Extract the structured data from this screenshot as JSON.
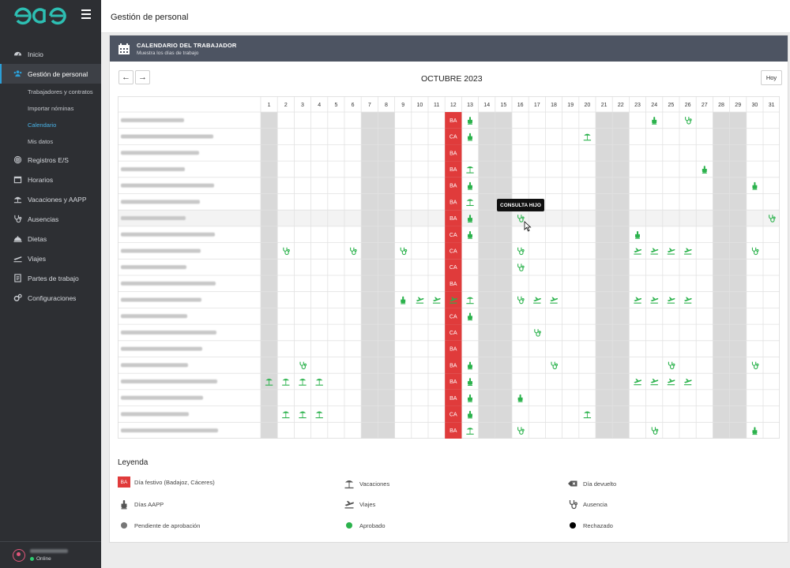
{
  "app": {
    "logo_text": "eae",
    "page_title": "Gestión de personal"
  },
  "sidebar": {
    "items": [
      {
        "label": "Inicio",
        "icon": "dashboard-icon"
      },
      {
        "label": "Gestión de personal",
        "icon": "users-icon",
        "active": true
      },
      {
        "label": "Trabajadores y contratos",
        "sub": true
      },
      {
        "label": "Importar nóminas",
        "sub": true
      },
      {
        "label": "Calendario",
        "sub": true,
        "current": true
      },
      {
        "label": "Mis datos",
        "sub": true
      },
      {
        "label": "Registros E/S",
        "icon": "fingerprint-icon"
      },
      {
        "label": "Horarios",
        "icon": "calendar-icon"
      },
      {
        "label": "Vacaciones y AAPP",
        "icon": "umbrella-icon"
      },
      {
        "label": "Ausencias",
        "icon": "stethoscope-icon"
      },
      {
        "label": "Dietas",
        "icon": "dish-icon"
      },
      {
        "label": "Viajes",
        "icon": "plane-icon"
      },
      {
        "label": "Partes de trabajo",
        "icon": "report-icon"
      },
      {
        "label": "Configuraciones",
        "icon": "gears-icon"
      }
    ],
    "user_status": "Online"
  },
  "card": {
    "title": "CALENDARIO DEL TRABAJADOR",
    "subtitle": "Muestra los días de trabajo"
  },
  "toolbar": {
    "prev": "←",
    "next": "→",
    "month": "OCTUBRE 2023",
    "today": "Hoy"
  },
  "calendar": {
    "days": [
      "1",
      "2",
      "3",
      "4",
      "5",
      "6",
      "7",
      "8",
      "9",
      "10",
      "11",
      "12",
      "13",
      "14",
      "15",
      "16",
      "17",
      "18",
      "19",
      "20",
      "21",
      "22",
      "23",
      "24",
      "25",
      "26",
      "27",
      "28",
      "29",
      "30",
      "31"
    ],
    "weekend_days": [
      1,
      7,
      8,
      14,
      15,
      21,
      22,
      28,
      29
    ],
    "holiday_day": 12,
    "rows": [
      {
        "h": "BA",
        "e": {
          "13": "A",
          "24": "A",
          "26": "U"
        }
      },
      {
        "h": "CA",
        "e": {
          "13": "A",
          "20": "V"
        }
      },
      {
        "h": "BA",
        "e": {}
      },
      {
        "h": "BA",
        "e": {
          "13": "V",
          "27": "A"
        }
      },
      {
        "h": "BA",
        "e": {
          "13": "A",
          "30": "A"
        }
      },
      {
        "h": "BA",
        "e": {
          "13": "V"
        }
      },
      {
        "h": "BA",
        "e": {
          "13": "A",
          "16": "U",
          "31": "U"
        }
      },
      {
        "h": "CA",
        "e": {
          "13": "A",
          "23": "A"
        }
      },
      {
        "h": "CA",
        "e": {
          "2": "U",
          "6": "U",
          "9": "U",
          "16": "U",
          "23": "T",
          "24": "T",
          "25": "T",
          "26": "T",
          "30": "U"
        }
      },
      {
        "h": "CA",
        "e": {
          "16": "U"
        }
      },
      {
        "h": "BA",
        "e": {}
      },
      {
        "h": "BA",
        "e": {
          "9": "A",
          "10": "T",
          "11": "T",
          "12": "T",
          "13": "V",
          "16": "U",
          "17": "T",
          "18": "T",
          "23": "T",
          "24": "T",
          "25": "T",
          "26": "T"
        }
      },
      {
        "h": "CA",
        "e": {
          "13": "A"
        }
      },
      {
        "h": "CA",
        "e": {
          "17": "U"
        }
      },
      {
        "h": "BA",
        "e": {}
      },
      {
        "h": "BA",
        "e": {
          "3": "U",
          "13": "A",
          "18": "U",
          "25": "U",
          "30": "U"
        }
      },
      {
        "h": "BA",
        "e": {
          "1": "V",
          "2": "V",
          "3": "V",
          "4": "V",
          "13": "A",
          "23": "T",
          "24": "T",
          "25": "T",
          "26": "T"
        }
      },
      {
        "h": "BA",
        "e": {
          "13": "A",
          "16": "A"
        }
      },
      {
        "h": "CA",
        "e": {
          "2": "V",
          "3": "V",
          "4": "V",
          "13": "A",
          "20": "V"
        }
      },
      {
        "h": "BA",
        "e": {
          "13": "V",
          "16": "U",
          "24": "U",
          "30": "A"
        }
      }
    ]
  },
  "tooltip": {
    "text": "CONSULTA HIJO"
  },
  "legend": {
    "title": "Leyenda",
    "holiday_box": "BA",
    "holiday": "Día festivo (Badajoz, Cáceres)",
    "vacations": "Vacaciones",
    "day_returned": "Día devuelto",
    "aapp": "Días AAPP",
    "trips": "Viajes",
    "absence": "Ausencia",
    "pending": "Pendiente de aprobación",
    "approved": "Aprobado",
    "rejected": "Rechazado"
  },
  "colors": {
    "accent": "#2b9fd8",
    "holiday": "#e03b3b",
    "approved": "#2bb24c",
    "weekend": "#d9d9d9",
    "header": "#4d5462",
    "sidebar": "#2d2f33"
  }
}
